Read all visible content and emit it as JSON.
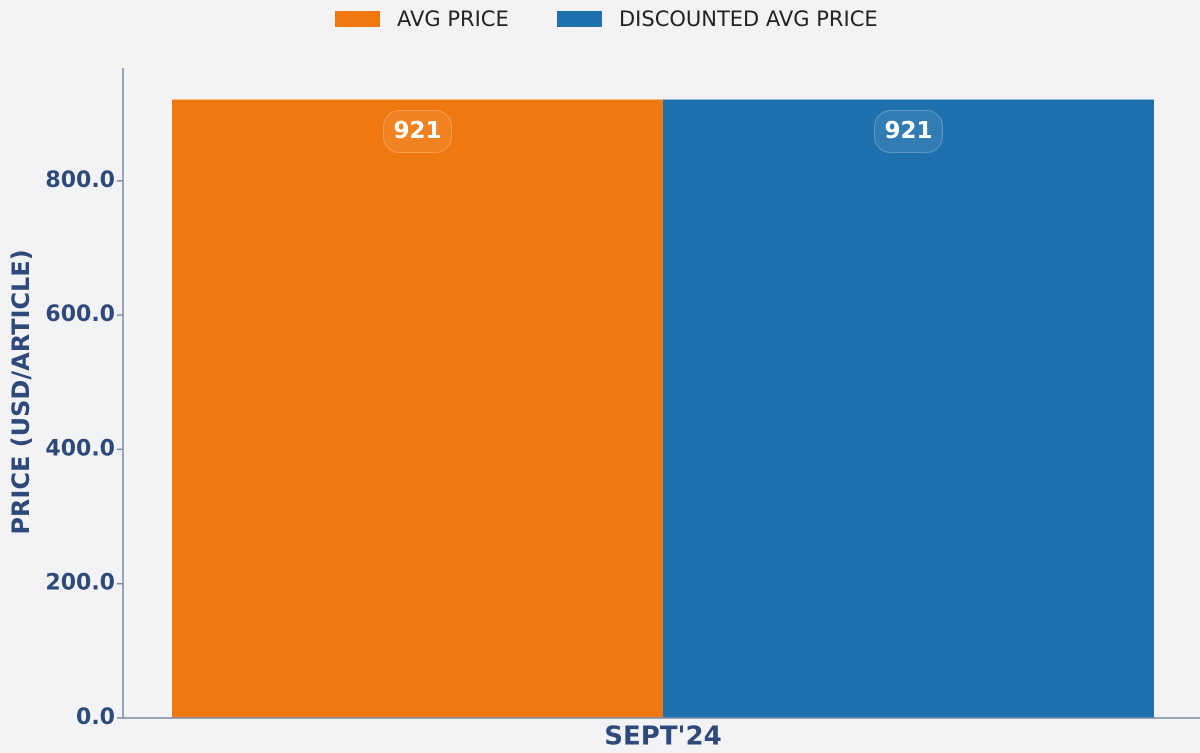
{
  "chart_data": {
    "type": "bar",
    "y_label": "PRICE (USD/ARTICLE)",
    "categories": [
      "SEPT'24"
    ],
    "series": [
      {
        "name": "AVG PRICE",
        "color": "#f07810",
        "values": [
          921
        ]
      },
      {
        "name": "DISCOUNTED AVG PRICE",
        "color": "#1f71ad",
        "values": [
          921
        ]
      }
    ],
    "ylim": [
      0,
      968
    ],
    "yticks": [
      {
        "value": 0,
        "label": "0.0"
      },
      {
        "value": 200,
        "label": "200.0"
      },
      {
        "value": 400,
        "label": "400.0"
      },
      {
        "value": 600,
        "label": "600.0"
      },
      {
        "value": 800,
        "label": "800.0"
      }
    ]
  }
}
